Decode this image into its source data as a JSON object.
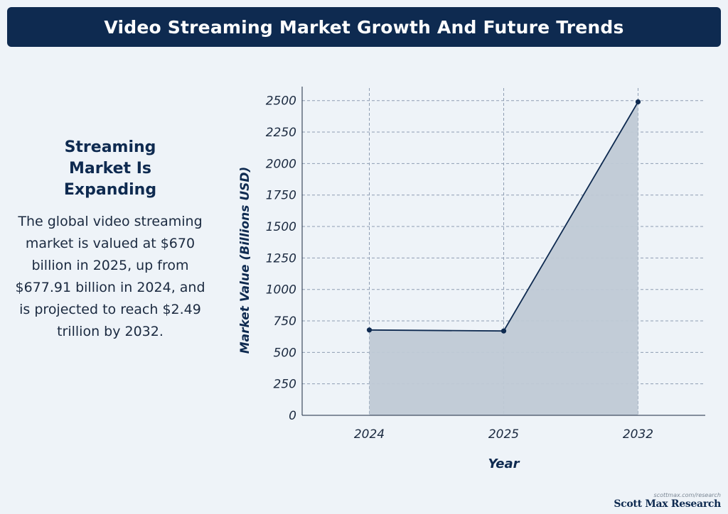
{
  "header": {
    "title": "Video Streaming Market Growth And Future Trends"
  },
  "sidebar": {
    "heading": "Streaming Market Is Expanding",
    "body": "The global video streaming market is valued at $670 billion in 2025, up from $677.91 billion in 2024, and is projected to reach $2.49 trillion by 2032."
  },
  "footer": {
    "url": "scottmax.com/research",
    "brand": "Scott Max Research"
  },
  "colors": {
    "line": "#0e2a50",
    "fill": "#bfc9d5",
    "grid": "#8e9db2",
    "axis_text": "#1b2a40"
  },
  "chart_data": {
    "type": "area",
    "categories": [
      "2024",
      "2025",
      "2032"
    ],
    "values": [
      677.91,
      670,
      2490
    ],
    "xlabel": "Year",
    "ylabel": "Market Value (Billions USD)",
    "ylim": [
      0,
      2600
    ],
    "yticks": [
      0,
      250,
      500,
      750,
      1000,
      1250,
      1500,
      1750,
      2000,
      2250,
      2500
    ],
    "grid": true,
    "markers": true
  }
}
